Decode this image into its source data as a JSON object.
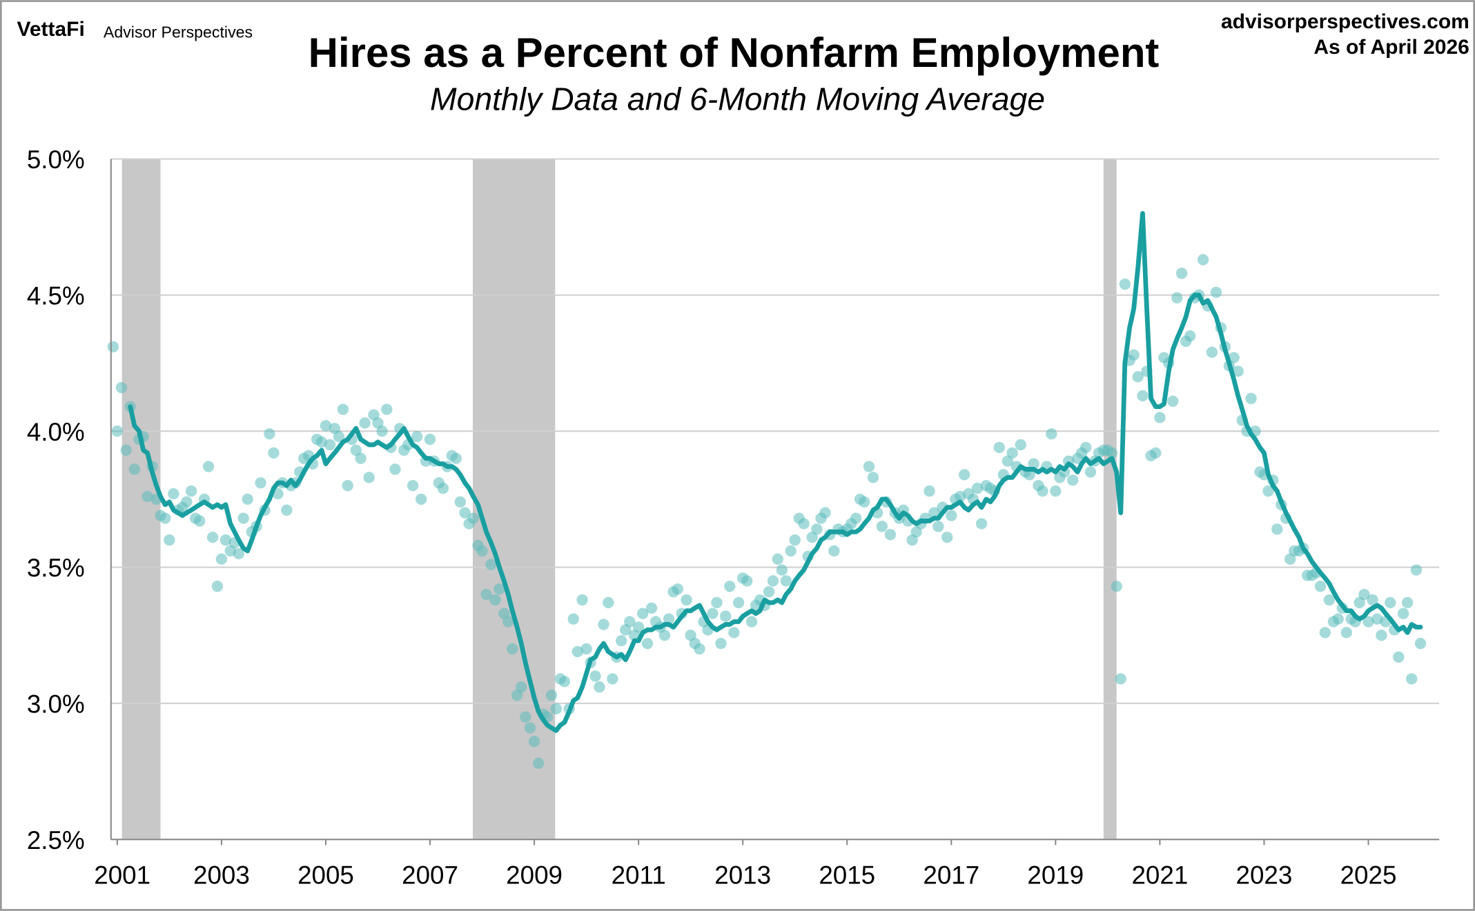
{
  "header": {
    "logo": "VettaFi",
    "brand": "Advisor Perspectives",
    "site": "advisorperspectives.com",
    "as_of": "As of April 2026"
  },
  "chart_data": {
    "type": "combo",
    "title": "Hires as a Percent of Nonfarm Employment",
    "subtitle": "Monthly Data and 6-Month Moving Average",
    "xlim": [
      2000.88,
      2026.36
    ],
    "xticks": [
      2001,
      2003,
      2005,
      2007,
      2009,
      2011,
      2013,
      2015,
      2017,
      2019,
      2021,
      2023,
      2025
    ],
    "ylim": [
      2.5,
      5.0
    ],
    "yticks": [
      {
        "value": 2.5,
        "label": "2.5%"
      },
      {
        "value": 3.0,
        "label": "3.0%"
      },
      {
        "value": 3.5,
        "label": "3.5%"
      },
      {
        "value": 4.0,
        "label": "4.0%"
      },
      {
        "value": 4.5,
        "label": "4.5%"
      },
      {
        "value": 5.0,
        "label": "5.0%"
      }
    ],
    "grid": true,
    "recession_color": "#c8c8c8",
    "recessions": [
      [
        2001.09,
        2001.83
      ],
      [
        2007.82,
        2009.4
      ],
      [
        2019.92,
        2020.17
      ]
    ],
    "x": [
      2000.92,
      2001.0,
      2001.08,
      2001.17,
      2001.25,
      2001.33,
      2001.42,
      2001.5,
      2001.58,
      2001.67,
      2001.75,
      2001.83,
      2001.92,
      2002.0,
      2002.08,
      2002.17,
      2002.25,
      2002.33,
      2002.42,
      2002.5,
      2002.58,
      2002.67,
      2002.75,
      2002.83,
      2002.92,
      2003.0,
      2003.08,
      2003.17,
      2003.25,
      2003.33,
      2003.42,
      2003.5,
      2003.58,
      2003.67,
      2003.75,
      2003.83,
      2003.92,
      2004.0,
      2004.08,
      2004.17,
      2004.25,
      2004.33,
      2004.42,
      2004.5,
      2004.58,
      2004.67,
      2004.75,
      2004.83,
      2004.92,
      2005.0,
      2005.08,
      2005.17,
      2005.25,
      2005.33,
      2005.42,
      2005.5,
      2005.58,
      2005.67,
      2005.75,
      2005.83,
      2005.92,
      2006.0,
      2006.08,
      2006.17,
      2006.25,
      2006.33,
      2006.42,
      2006.5,
      2006.58,
      2006.67,
      2006.75,
      2006.83,
      2006.92,
      2007.0,
      2007.08,
      2007.17,
      2007.25,
      2007.33,
      2007.42,
      2007.5,
      2007.58,
      2007.67,
      2007.75,
      2007.83,
      2007.92,
      2008.0,
      2008.08,
      2008.17,
      2008.25,
      2008.33,
      2008.42,
      2008.5,
      2008.58,
      2008.67,
      2008.75,
      2008.83,
      2008.92,
      2009.0,
      2009.08,
      2009.17,
      2009.25,
      2009.33,
      2009.42,
      2009.5,
      2009.58,
      2009.67,
      2009.75,
      2009.83,
      2009.92,
      2010.0,
      2010.08,
      2010.17,
      2010.25,
      2010.33,
      2010.42,
      2010.5,
      2010.58,
      2010.67,
      2010.75,
      2010.83,
      2010.92,
      2011.0,
      2011.08,
      2011.17,
      2011.25,
      2011.33,
      2011.42,
      2011.5,
      2011.58,
      2011.67,
      2011.75,
      2011.83,
      2011.92,
      2012.0,
      2012.08,
      2012.17,
      2012.25,
      2012.33,
      2012.42,
      2012.5,
      2012.58,
      2012.67,
      2012.75,
      2012.83,
      2012.92,
      2013.0,
      2013.08,
      2013.17,
      2013.25,
      2013.33,
      2013.42,
      2013.5,
      2013.58,
      2013.67,
      2013.75,
      2013.83,
      2013.92,
      2014.0,
      2014.08,
      2014.17,
      2014.25,
      2014.33,
      2014.42,
      2014.5,
      2014.58,
      2014.67,
      2014.75,
      2014.83,
      2014.92,
      2015.0,
      2015.08,
      2015.17,
      2015.25,
      2015.33,
      2015.42,
      2015.5,
      2015.58,
      2015.67,
      2015.75,
      2015.83,
      2015.92,
      2016.0,
      2016.08,
      2016.17,
      2016.25,
      2016.33,
      2016.42,
      2016.5,
      2016.58,
      2016.67,
      2016.75,
      2016.83,
      2016.92,
      2017.0,
      2017.08,
      2017.17,
      2017.25,
      2017.33,
      2017.42,
      2017.5,
      2017.58,
      2017.67,
      2017.75,
      2017.83,
      2017.92,
      2018.0,
      2018.08,
      2018.17,
      2018.25,
      2018.33,
      2018.42,
      2018.5,
      2018.58,
      2018.67,
      2018.75,
      2018.83,
      2018.92,
      2019.0,
      2019.08,
      2019.17,
      2019.25,
      2019.33,
      2019.42,
      2019.5,
      2019.58,
      2019.67,
      2019.75,
      2019.83,
      2019.92,
      2020.0,
      2020.08,
      2020.17,
      2020.25,
      2020.33,
      2020.42,
      2020.5,
      2020.58,
      2020.67,
      2020.75,
      2020.83,
      2020.92,
      2021.0,
      2021.08,
      2021.17,
      2021.25,
      2021.33,
      2021.42,
      2021.5,
      2021.58,
      2021.67,
      2021.75,
      2021.83,
      2021.92,
      2022.0,
      2022.08,
      2022.17,
      2022.25,
      2022.33,
      2022.42,
      2022.5,
      2022.58,
      2022.67,
      2022.75,
      2022.83,
      2022.92,
      2023.0,
      2023.08,
      2023.17,
      2023.25,
      2023.33,
      2023.42,
      2023.5,
      2023.58,
      2023.67,
      2023.75,
      2023.83,
      2023.92,
      2024.0,
      2024.08,
      2024.17,
      2024.25,
      2024.33,
      2024.42,
      2024.5,
      2024.58,
      2024.67,
      2024.75,
      2024.83,
      2024.92,
      2025.0,
      2025.08,
      2025.17,
      2025.25,
      2025.33,
      2025.42,
      2025.5,
      2025.58,
      2025.67,
      2025.75,
      2025.83,
      2025.92,
      2026.0
    ],
    "series": [
      {
        "type": "scatter",
        "color": "#5bbcbc",
        "values": [
          4.31,
          4.0,
          4.16,
          3.93,
          4.09,
          3.86,
          3.97,
          3.98,
          3.76,
          3.87,
          3.75,
          3.69,
          3.68,
          3.6,
          3.77,
          3.71,
          3.72,
          3.74,
          3.78,
          3.68,
          3.67,
          3.75,
          3.87,
          3.61,
          3.43,
          3.53,
          3.6,
          3.56,
          3.59,
          3.55,
          3.68,
          3.75,
          3.63,
          3.65,
          3.81,
          3.71,
          3.99,
          3.92,
          3.77,
          3.81,
          3.71,
          3.8,
          3.81,
          3.85,
          3.9,
          3.91,
          3.88,
          3.97,
          3.96,
          4.02,
          3.95,
          4.01,
          3.98,
          4.08,
          3.8,
          3.97,
          3.93,
          3.9,
          4.03,
          3.83,
          4.06,
          4.03,
          4.0,
          4.08,
          3.94,
          3.86,
          4.01,
          3.93,
          3.95,
          3.8,
          3.98,
          3.75,
          3.89,
          3.97,
          3.89,
          3.81,
          3.79,
          3.87,
          3.91,
          3.9,
          3.74,
          3.7,
          3.66,
          3.68,
          3.58,
          3.56,
          3.4,
          3.51,
          3.38,
          3.42,
          3.33,
          3.3,
          3.2,
          3.03,
          3.06,
          2.95,
          2.91,
          2.86,
          2.78,
          2.96,
          2.95,
          3.03,
          2.98,
          3.09,
          3.08,
          2.98,
          3.31,
          3.19,
          3.38,
          3.2,
          3.15,
          3.1,
          3.06,
          3.29,
          3.37,
          3.09,
          3.17,
          3.23,
          3.27,
          3.3,
          3.25,
          3.28,
          3.33,
          3.22,
          3.35,
          3.3,
          3.28,
          3.25,
          3.31,
          3.41,
          3.42,
          3.33,
          3.38,
          3.25,
          3.22,
          3.2,
          3.3,
          3.27,
          3.33,
          3.37,
          3.22,
          3.32,
          3.43,
          3.26,
          3.37,
          3.46,
          3.45,
          3.3,
          3.36,
          3.38,
          3.36,
          3.41,
          3.45,
          3.53,
          3.49,
          3.45,
          3.56,
          3.6,
          3.68,
          3.66,
          3.54,
          3.61,
          3.64,
          3.68,
          3.7,
          3.62,
          3.56,
          3.64,
          3.63,
          3.64,
          3.66,
          3.68,
          3.75,
          3.74,
          3.87,
          3.83,
          3.7,
          3.65,
          3.74,
          3.62,
          3.7,
          3.68,
          3.71,
          3.67,
          3.6,
          3.63,
          3.66,
          3.68,
          3.78,
          3.7,
          3.65,
          3.72,
          3.61,
          3.69,
          3.75,
          3.76,
          3.84,
          3.77,
          3.75,
          3.79,
          3.66,
          3.8,
          3.79,
          3.78,
          3.94,
          3.84,
          3.89,
          3.92,
          3.87,
          3.95,
          3.85,
          3.84,
          3.88,
          3.8,
          3.78,
          3.87,
          3.99,
          3.78,
          3.83,
          3.85,
          3.89,
          3.82,
          3.9,
          3.92,
          3.94,
          3.85,
          3.89,
          3.92,
          3.93,
          3.93,
          3.92,
          3.43,
          3.09,
          4.54,
          4.26,
          4.28,
          4.2,
          4.13,
          4.22,
          3.91,
          3.92,
          4.05,
          4.27,
          4.25,
          4.11,
          4.49,
          4.58,
          4.33,
          4.35,
          4.49,
          4.5,
          4.63,
          4.46,
          4.29,
          4.51,
          4.38,
          4.31,
          4.24,
          4.27,
          4.22,
          4.04,
          4.0,
          4.12,
          4.0,
          3.85,
          3.84,
          3.78,
          3.82,
          3.64,
          3.73,
          3.68,
          3.53,
          3.56,
          3.56,
          3.57,
          3.47,
          3.47,
          3.48,
          3.43,
          3.26,
          3.38,
          3.3,
          3.31,
          3.35,
          3.26,
          3.31,
          3.3,
          3.37,
          3.4,
          3.3,
          3.38,
          3.31,
          3.25,
          3.3,
          3.37,
          3.27,
          3.17,
          3.33,
          3.37,
          3.09,
          3.49,
          3.22
        ]
      },
      {
        "type": "line",
        "color": "#1a9fa1",
        "values": [
          null,
          null,
          null,
          null,
          4.09,
          4.02,
          4.0,
          3.93,
          3.92,
          3.85,
          3.8,
          3.76,
          3.73,
          3.74,
          3.71,
          3.7,
          3.69,
          3.7,
          3.71,
          3.72,
          3.73,
          3.74,
          3.73,
          3.72,
          3.73,
          3.72,
          3.73,
          3.66,
          3.63,
          3.6,
          3.57,
          3.56,
          3.6,
          3.65,
          3.69,
          3.72,
          3.75,
          3.79,
          3.81,
          3.81,
          3.8,
          3.82,
          3.8,
          3.82,
          3.85,
          3.88,
          3.9,
          3.91,
          3.93,
          3.88,
          3.9,
          3.92,
          3.94,
          3.96,
          3.97,
          3.99,
          4.01,
          3.97,
          3.96,
          3.95,
          3.95,
          3.96,
          3.95,
          3.94,
          3.95,
          3.97,
          3.99,
          4.01,
          3.98,
          3.95,
          3.94,
          3.92,
          3.9,
          3.9,
          3.89,
          3.88,
          3.88,
          3.87,
          3.87,
          3.86,
          3.84,
          3.81,
          3.79,
          3.76,
          3.73,
          3.68,
          3.63,
          3.59,
          3.55,
          3.5,
          3.45,
          3.4,
          3.34,
          3.28,
          3.22,
          3.15,
          3.08,
          3.02,
          2.97,
          2.94,
          2.92,
          2.91,
          2.9,
          2.92,
          2.93,
          2.97,
          3.01,
          3.02,
          3.06,
          3.11,
          3.16,
          3.17,
          3.2,
          3.22,
          3.19,
          3.18,
          3.17,
          3.18,
          3.16,
          3.19,
          3.23,
          3.23,
          3.26,
          3.27,
          3.27,
          3.28,
          3.28,
          3.29,
          3.29,
          3.28,
          3.3,
          3.32,
          3.34,
          3.34,
          3.35,
          3.36,
          3.33,
          3.3,
          3.28,
          3.27,
          3.28,
          3.29,
          3.29,
          3.3,
          3.3,
          3.32,
          3.33,
          3.34,
          3.33,
          3.34,
          3.38,
          3.37,
          3.37,
          3.38,
          3.37,
          3.4,
          3.42,
          3.45,
          3.47,
          3.49,
          3.52,
          3.55,
          3.57,
          3.6,
          3.61,
          3.63,
          3.63,
          3.63,
          3.63,
          3.62,
          3.63,
          3.63,
          3.64,
          3.66,
          3.68,
          3.71,
          3.72,
          3.75,
          3.75,
          3.73,
          3.7,
          3.68,
          3.7,
          3.69,
          3.67,
          3.66,
          3.67,
          3.67,
          3.67,
          3.68,
          3.68,
          3.7,
          3.72,
          3.72,
          3.73,
          3.74,
          3.72,
          3.71,
          3.73,
          3.74,
          3.72,
          3.75,
          3.74,
          3.76,
          3.8,
          3.82,
          3.83,
          3.83,
          3.85,
          3.87,
          3.86,
          3.86,
          3.86,
          3.85,
          3.86,
          3.85,
          3.86,
          3.85,
          3.87,
          3.86,
          3.88,
          3.87,
          3.85,
          3.88,
          3.9,
          3.88,
          3.89,
          3.9,
          3.88,
          3.89,
          3.9,
          3.85,
          3.7,
          4.25,
          4.38,
          4.45,
          4.6,
          4.8,
          4.45,
          4.12,
          4.09,
          4.09,
          4.1,
          4.22,
          4.3,
          4.34,
          4.38,
          4.42,
          4.48,
          4.5,
          4.5,
          4.47,
          4.48,
          4.45,
          4.42,
          4.36,
          4.3,
          4.25,
          4.19,
          4.13,
          4.08,
          4.02,
          3.99,
          3.97,
          3.94,
          3.92,
          3.84,
          3.8,
          3.78,
          3.74,
          3.7,
          3.67,
          3.64,
          3.61,
          3.57,
          3.55,
          3.52,
          3.5,
          3.48,
          3.46,
          3.44,
          3.41,
          3.38,
          3.36,
          3.34,
          3.34,
          3.32,
          3.31,
          3.32,
          3.34,
          3.35,
          3.36,
          3.35,
          3.33,
          3.31,
          3.29,
          3.27,
          3.28,
          3.26,
          3.29,
          3.28,
          3.28
        ]
      }
    ]
  }
}
